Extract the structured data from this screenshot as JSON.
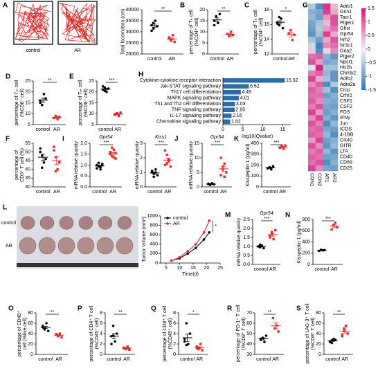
{
  "chart_data": [
    {
      "type": "dotplot",
      "panel": "A",
      "image_labels": [
        "control",
        "AR"
      ],
      "ylabel": [
        "Total locomotion (cm)"
      ],
      "ylim": [
        20000,
        40000
      ],
      "yticks": [
        20000,
        25000,
        30000,
        35000,
        40000
      ],
      "categories": [
        "control",
        "AR"
      ],
      "colors": [
        "#000000",
        "#e8262b"
      ],
      "values": [
        [
          33000,
          31500,
          35000,
          32500,
          30500,
          34000
        ],
        [
          27000,
          26000,
          28500,
          25500,
          27500,
          26500
        ]
      ],
      "means": [
        32800,
        26800
      ],
      "errors": [
        700,
        450
      ],
      "significance": "**"
    },
    {
      "type": "dotplot",
      "panel": "B",
      "ylabel": [
        "percentage of Tₕ cell",
        "(%CD4⁺ cell)"
      ],
      "ylim": [
        0,
        20
      ],
      "yticks": [
        0,
        5,
        10,
        15,
        20
      ],
      "categories": [
        "control",
        "AR"
      ],
      "colors": [
        "#000000",
        "#e8262b"
      ],
      "values": [
        [
          15,
          17,
          14,
          18,
          13
        ],
        [
          9,
          8,
          10,
          8.5
        ]
      ],
      "means": [
        15.4,
        8.9
      ],
      "errors": [
        0.9,
        0.4
      ],
      "significance": "**"
    },
    {
      "type": "dotplot",
      "panel": "C",
      "ylabel": [
        "percentage of Tₕ cell",
        "(%CD4⁺ cell)"
      ],
      "ylim": [
        12,
        18
      ],
      "yticks": [
        12,
        14,
        16,
        18
      ],
      "categories": [
        "control",
        "AR"
      ],
      "colors": [
        "#000000",
        "#e8262b"
      ],
      "values": [
        [
          16.3,
          15.9,
          16.8,
          15.5,
          16.1,
          17
        ],
        [
          14.8,
          15.2,
          13.9,
          14.6
        ]
      ],
      "means": [
        16.3,
        14.6
      ],
      "errors": [
        0.2,
        0.3
      ],
      "significance": "*"
    },
    {
      "type": "heatmap",
      "panel": "G",
      "columns": [
        "CON1",
        "CON2",
        "AR1",
        "AR2"
      ],
      "rows": [
        "Adrb1",
        "Grin1",
        "Tacr1",
        "Ptger1",
        "Ghsr",
        "Gpr54",
        "Hrh2",
        "Nr3c1",
        "Gria2",
        "Ptger2",
        "Npsr1",
        "Htr2b",
        "Chrnb2",
        "Adrb2",
        "Adra2a",
        "Crcp",
        "Crhr2",
        "CSF1",
        "CSF2",
        "FOS",
        "IFNγ",
        "Jun",
        "ICOS",
        "4-1BB",
        "OX40",
        "GITR",
        "LTA",
        "CD40",
        "CD69",
        "CD25"
      ],
      "values": [
        [
          -0.5,
          -1.2,
          1.3,
          0.4
        ],
        [
          -0.8,
          -0.9,
          1.2,
          0.5
        ],
        [
          -0.7,
          -1.0,
          0.6,
          1.1
        ],
        [
          -0.9,
          -0.6,
          0.4,
          1.1
        ],
        [
          -1.0,
          -0.5,
          0.6,
          0.9
        ],
        [
          -1.1,
          -0.6,
          1.2,
          0.5
        ],
        [
          -0.6,
          -1.0,
          0.5,
          1.1
        ],
        [
          -0.3,
          -1.3,
          0.7,
          0.9
        ],
        [
          0.3,
          -1.2,
          0.2,
          0.7
        ],
        [
          0.9,
          1.0,
          -0.8,
          -1.1
        ],
        [
          1.1,
          0.6,
          -0.9,
          -0.8
        ],
        [
          -0.2,
          1.4,
          -0.6,
          -0.6
        ],
        [
          0.8,
          1.0,
          -0.7,
          -1.1
        ],
        [
          1.2,
          0.5,
          -0.6,
          -1.1
        ],
        [
          0.7,
          1.0,
          -1.2,
          -0.5
        ],
        [
          1.0,
          0.8,
          -0.6,
          -1.2
        ],
        [
          0.9,
          0.9,
          -1.0,
          -0.8
        ],
        [
          1.0,
          0.7,
          -0.8,
          -0.9
        ],
        [
          0.8,
          1.1,
          -0.9,
          -1.0
        ],
        [
          1.2,
          0.6,
          -1.0,
          -0.8
        ],
        [
          0.7,
          1.2,
          -0.8,
          -1.1
        ],
        [
          1.1,
          0.8,
          -1.2,
          -0.7
        ],
        [
          0.9,
          1.0,
          -0.9,
          -1.0
        ],
        [
          1.0,
          0.9,
          -0.7,
          -1.2
        ],
        [
          0.6,
          1.2,
          -1.0,
          -0.8
        ],
        [
          1.1,
          0.7,
          -1.1,
          -0.7
        ],
        [
          0.8,
          1.0,
          -0.7,
          -1.1
        ],
        [
          1.0,
          0.9,
          -1.0,
          -0.9
        ],
        [
          0.9,
          1.1,
          -1.2,
          -0.8
        ],
        [
          1.2,
          0.7,
          -0.9,
          -1.0
        ]
      ],
      "colorbar_lim": [
        -1.5,
        1.5
      ],
      "colorbar_ticks": [
        1.5,
        1,
        0.5,
        0,
        -0.5,
        -1,
        -1.5
      ],
      "colors": [
        "#2b74b3",
        "#f4f4f4",
        "#d4157d"
      ]
    },
    {
      "type": "dotplot",
      "panel": "D",
      "ylabel": [
        "percentage of Tₘ cell",
        "(%CD8⁺ cell)"
      ],
      "ylim": [
        5,
        25
      ],
      "yticks": [
        5,
        10,
        15,
        20,
        25
      ],
      "categories": [
        "control",
        "AR"
      ],
      "colors": [
        "#000000",
        "#e8262b"
      ],
      "values": [
        [
          16,
          14,
          19,
          17,
          15
        ],
        [
          8,
          9,
          7.5,
          8.5
        ]
      ],
      "means": [
        16.2,
        8.3
      ],
      "errors": [
        0.9,
        0.3
      ],
      "significance": "**"
    },
    {
      "type": "dotplot",
      "panel": "E",
      "ylabel": [
        "percentage of Tₘ cell",
        "(%CD8⁺ cell)"
      ],
      "ylim": [
        5,
        25
      ],
      "yticks": [
        5,
        10,
        15,
        20,
        25
      ],
      "categories": [
        "control",
        "AR"
      ],
      "colors": [
        "#000000",
        "#e8262b"
      ],
      "values": [
        [
          21,
          22,
          20,
          21.5,
          22.5,
          20.5
        ],
        [
          9.5,
          10,
          9,
          10.5,
          9.8,
          10.2
        ]
      ],
      "means": [
        21.3,
        9.8
      ],
      "errors": [
        0.4,
        0.2
      ],
      "significance": "***"
    },
    {
      "type": "hbar",
      "panel": "H",
      "categories": [
        "Cytokine-cytokine receptor interaction",
        "Jak-STAT signaling pathway",
        "Th17 cell differentiation",
        "MAPK signaling pathway",
        "Th1 and Th2 cell differentiation",
        "TNF signaling pathway",
        "IL-17 signaling pathway",
        "Chemokine signaling pathway"
      ],
      "values": [
        15.52,
        6.52,
        4.49,
        4.01,
        3.03,
        2.95,
        2.16,
        1.82
      ],
      "color": "#2e6da4",
      "xlabel": "-log10(Qvalue)",
      "xlim": [
        0,
        17
      ],
      "xticks": [
        0,
        5,
        10,
        15
      ]
    },
    {
      "type": "dotplot",
      "panel": "F",
      "ylabel": [
        "percentage of",
        "CD3⁺ T cell (%)"
      ],
      "ylim": [
        30,
        55
      ],
      "yticks": [
        30,
        35,
        40,
        45,
        50,
        55
      ],
      "categories": [
        "control",
        "AR"
      ],
      "colors": [
        "#000000",
        "#e8262b"
      ],
      "values": [
        [
          52,
          48,
          44,
          46,
          50,
          41
        ],
        [
          51,
          47,
          40,
          44,
          53,
          39
        ]
      ],
      "means": [
        47,
        45
      ],
      "errors": [
        1.7,
        2.2
      ]
    },
    {
      "type": "dotplot",
      "panel": "I",
      "title": "Gpr54",
      "ylabel": [
        "mRNA relative quanity"
      ],
      "ylim": [
        0,
        2
      ],
      "yticks": [
        {
          "value": 0,
          "label": "0.0"
        },
        {
          "value": 0.5,
          "label": "0.5"
        },
        {
          "value": 1,
          "label": "1.0"
        },
        {
          "value": 1.5,
          "label": "1.5"
        },
        {
          "value": 2,
          "label": "2.0"
        }
      ],
      "categories": [
        "control",
        "AR"
      ],
      "colors": [
        "#000000",
        "#e8262b"
      ],
      "values": [
        [
          1.0,
          0.95,
          0.9,
          1.05,
          0.85,
          1.1,
          0.8,
          1.0
        ],
        [
          1.5,
          1.4,
          1.7,
          1.3,
          1.6,
          1.8,
          1.35,
          1.55
        ]
      ],
      "means": [
        0.96,
        1.52
      ],
      "errors": [
        0.03,
        0.06
      ],
      "significance": "***"
    },
    {
      "type": "dotplot",
      "title": "Kiss1",
      "ylabel": [
        "mRNA relative quanity"
      ],
      "ylim": [
        0,
        3
      ],
      "yticks": [
        0,
        1,
        2,
        3
      ],
      "categories": [
        "control",
        "AR"
      ],
      "colors": [
        "#000000",
        "#e8262b"
      ],
      "values": [
        [
          1.0,
          0.9,
          1.2,
          0.8,
          1.1,
          0.7,
          1.0
        ],
        [
          1.5,
          2.2,
          1.8,
          1.4,
          2.5,
          1.6,
          1.9
        ]
      ],
      "means": [
        0.96,
        1.84
      ],
      "errors": [
        0.06,
        0.14
      ],
      "significance": "***"
    },
    {
      "type": "dotplot",
      "panel": "J",
      "title": "Gpr54",
      "ylabel": [
        "mRNA relative quanity"
      ],
      "ylim": [
        0,
        15
      ],
      "yticks": [
        0,
        5,
        10,
        15
      ],
      "categories": [
        "control",
        "AR"
      ],
      "colors": [
        "#000000",
        "#e8262b"
      ],
      "values": [
        [
          1,
          0.8,
          1.2,
          0.9,
          1.1,
          0.7
        ],
        [
          4,
          6,
          8,
          5,
          10,
          7,
          3.5
        ]
      ],
      "means": [
        0.95,
        6.2
      ],
      "errors": [
        0.07,
        0.9
      ],
      "significance": "***"
    },
    {
      "type": "dotplot",
      "panel": "K",
      "ylabel": [
        "Kisspeptin 1 (pg/ml)"
      ],
      "ylim": [
        0,
        400
      ],
      "yticks": [
        0,
        100,
        200,
        300,
        400
      ],
      "categories": [
        "control",
        "AR"
      ],
      "colors": [
        "#000000",
        "#e8262b"
      ],
      "values": [
        [
          170,
          180,
          160,
          190
        ],
        [
          360,
          375,
          350,
          380
        ]
      ],
      "means": [
        175,
        366
      ],
      "errors": [
        6,
        7
      ],
      "significance": "***"
    },
    {
      "type": "line",
      "panel": "L",
      "image_labels": [
        "control",
        "AR"
      ],
      "ylabel": [
        "Tumor Volume (mm³)"
      ],
      "xlabel": "Time(d)",
      "x": [
        7,
        10,
        13,
        16,
        19,
        21
      ],
      "xlim": [
        3,
        25
      ],
      "xticks": [
        5,
        10,
        15,
        20,
        25
      ],
      "ylim": [
        0,
        1000
      ],
      "yticks": [
        0,
        200,
        400,
        600,
        800,
        1000
      ],
      "series": [
        {
          "name": "control",
          "color": "#000000",
          "values": [
            50,
            100,
            200,
            320,
            500,
            650
          ]
        },
        {
          "name": "AR",
          "color": "#e8262b",
          "values": [
            50,
            120,
            250,
            400,
            650,
            900
          ]
        }
      ],
      "significance": "*"
    },
    {
      "type": "dotplot",
      "panel": "M",
      "title": "Gpr54",
      "ylabel": [
        "mRNA relative quanity"
      ],
      "ylim": [
        0,
        2.5
      ],
      "yticks": [
        {
          "value": 0,
          "label": "0.0"
        },
        {
          "value": 0.5,
          "label": "0.5"
        },
        {
          "value": 1,
          "label": "1.0"
        },
        {
          "value": 1.5,
          "label": "1.5"
        },
        {
          "value": 2,
          "label": "2.0"
        },
        {
          "value": 2.5,
          "label": "2.5"
        }
      ],
      "categories": [
        "control",
        "AR"
      ],
      "colors": [
        "#000000",
        "#e8262b"
      ],
      "values": [
        [
          1.0,
          0.95,
          1.05,
          0.9,
          1.0,
          1.1
        ],
        [
          1.6,
          1.8,
          1.4,
          1.9,
          1.5,
          1.7
        ]
      ],
      "means": [
        1.0,
        1.65
      ],
      "errors": [
        0.03,
        0.08
      ],
      "significance": "***"
    },
    {
      "type": "dotplot",
      "panel": "N",
      "ylabel": [
        "Kisspeptin 1 (pg/ml)"
      ],
      "ylim": [
        0,
        800
      ],
      "yticks": [
        0,
        200,
        400,
        600,
        800
      ],
      "categories": [
        "control",
        "AR"
      ],
      "colors": [
        "#000000",
        "#e8262b"
      ],
      "values": [
        [
          240,
          260,
          250,
          255
        ],
        [
          620,
          700,
          740,
          660
        ]
      ],
      "means": [
        251,
        680
      ],
      "errors": [
        4,
        25
      ],
      "significance": "***"
    },
    {
      "type": "dotplot",
      "panel": "O",
      "ylabel": [
        "percentage of CD45⁺",
        "cell (%live cell)"
      ],
      "ylim": [
        0,
        80
      ],
      "yticks": [
        0,
        20,
        40,
        60,
        80
      ],
      "categories": [
        "control",
        "AR"
      ],
      "colors": [
        "#000000",
        "#e8262b"
      ],
      "values": [
        [
          55,
          48,
          60,
          45,
          52,
          50
        ],
        [
          38,
          35,
          40,
          33,
          39,
          36
        ]
      ],
      "means": [
        52,
        37
      ],
      "errors": [
        2,
        1
      ],
      "significance": "**"
    },
    {
      "type": "dotplot",
      "panel": "P",
      "ylabel": [
        "percentage of CD4⁺ T cell",
        "(%CD45⁺ cell)"
      ],
      "ylim": [
        0,
        8
      ],
      "yticks": [
        0,
        2,
        4,
        6,
        8
      ],
      "categories": [
        "control",
        "AR"
      ],
      "colors": [
        "#000000",
        "#e8262b"
      ],
      "values": [
        [
          3.5,
          5.5,
          2.5,
          4,
          2,
          3.6
        ],
        [
          1.2,
          1.0,
          1.5,
          0.9,
          1.3,
          1.1
        ]
      ],
      "means": [
        3.5,
        1.2
      ],
      "errors": [
        0.5,
        0.1
      ],
      "significance": "**"
    },
    {
      "type": "dotplot",
      "panel": "Q",
      "ylabel": [
        "percentage of CD8⁺ T cell",
        "(%CD45⁺ cell)"
      ],
      "ylim": [
        0,
        8
      ],
      "yticks": [
        0,
        2,
        4,
        6,
        8
      ],
      "categories": [
        "control",
        "AR"
      ],
      "colors": [
        "#000000",
        "#e8262b"
      ],
      "values": [
        [
          3,
          6,
          2,
          4,
          2.5,
          1.8
        ],
        [
          1.5,
          1,
          2,
          0.8,
          1.2,
          1.3
        ]
      ],
      "means": [
        3.2,
        1.3
      ],
      "errors": [
        0.7,
        0.17
      ],
      "significance": "*"
    },
    {
      "type": "dotplot",
      "panel": "R",
      "ylabel": [
        "percentage of PD-1⁺ T cell",
        "(%CD8⁺ T cell)"
      ],
      "ylim": [
        30,
        70
      ],
      "yticks": [
        30,
        40,
        50,
        60,
        70
      ],
      "categories": [
        "control",
        "AR"
      ],
      "colors": [
        "#000000",
        "#e8262b"
      ],
      "values": [
        [
          44,
          46,
          42,
          48,
          45
        ],
        [
          65,
          55,
          58,
          52
        ]
      ],
      "means": [
        45,
        57.5
      ],
      "errors": [
        1,
        2.8
      ],
      "significance": "**"
    },
    {
      "type": "dotplot",
      "panel": "S",
      "ylabel": [
        "percentage of LAG-3⁺ T cell",
        "(%CD8⁺ T cell)"
      ],
      "ylim": [
        0,
        80
      ],
      "yticks": [
        0,
        20,
        40,
        60,
        80
      ],
      "categories": [
        "control",
        "AR"
      ],
      "colors": [
        "#000000",
        "#e8262b"
      ],
      "values": [
        [
          25,
          22,
          30,
          28,
          24,
          27
        ],
        [
          35,
          45,
          55,
          40,
          38,
          50
        ]
      ],
      "means": [
        26,
        44
      ],
      "errors": [
        1.2,
        3
      ],
      "significance": "**"
    }
  ]
}
